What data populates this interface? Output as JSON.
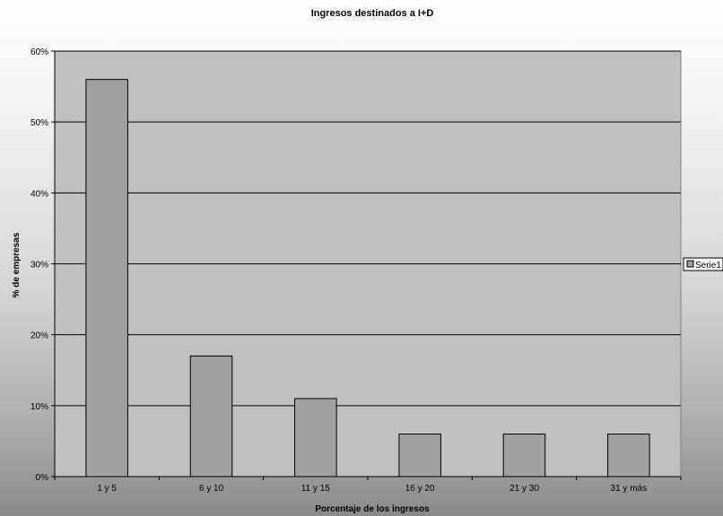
{
  "chart_data": {
    "type": "bar",
    "title": "Ingresos destinados a I+D",
    "xlabel": "Porcentaje de los ingresos",
    "ylabel": "% de empresas",
    "categories": [
      "1 y 5",
      "6 y 10",
      "11 y 15",
      "16 y 20",
      "21 y 30",
      "31 y más"
    ],
    "series": [
      {
        "name": "Serie1",
        "values": [
          56,
          17,
          11,
          6,
          6,
          6
        ]
      }
    ],
    "ylim": [
      0,
      60
    ],
    "yticks": [
      0,
      10,
      20,
      30,
      40,
      50,
      60
    ],
    "ytick_labels": [
      "0%",
      "10%",
      "20%",
      "30%",
      "40%",
      "50%",
      "60%"
    ],
    "grid": true,
    "legend_position": "right",
    "colors": {
      "plot_background": "#c0c0c0",
      "bar_fill": "#a0a0a0",
      "bar_stroke": "#000000",
      "gridline": "#000000"
    }
  }
}
